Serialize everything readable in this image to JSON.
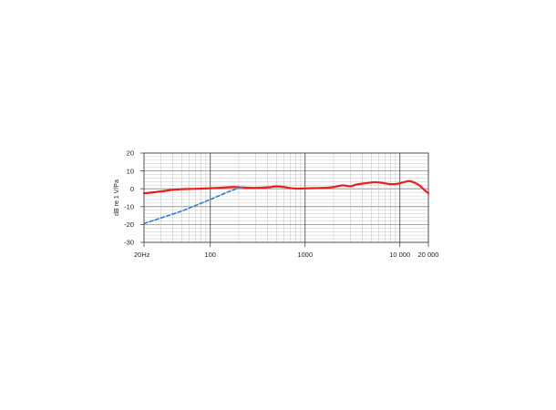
{
  "chart_data": {
    "type": "line",
    "title": "",
    "xlabel": "",
    "ylabel": "dB re 1 V/Pa",
    "x_scale": "log",
    "xlim": [
      20,
      20000
    ],
    "ylim": [
      -30,
      20
    ],
    "grid": true,
    "x_ticks": [
      {
        "value": 20,
        "label": "20Hz"
      },
      {
        "value": 100,
        "label": "100"
      },
      {
        "value": 1000,
        "label": "1000"
      },
      {
        "value": 10000,
        "label": "10 000"
      },
      {
        "value": 20000,
        "label": "20 000"
      }
    ],
    "y_ticks": [
      {
        "value": 20,
        "label": "20"
      },
      {
        "value": 10,
        "label": "10"
      },
      {
        "value": 0,
        "label": "0"
      },
      {
        "value": -10,
        "label": "-10"
      },
      {
        "value": -20,
        "label": "-20"
      },
      {
        "value": -30,
        "label": "-30"
      }
    ],
    "series": [
      {
        "color": "#e8201e",
        "style": "solid",
        "points": [
          [
            20,
            -2.5
          ],
          [
            25,
            -2.0
          ],
          [
            30,
            -1.5
          ],
          [
            40,
            -0.6
          ],
          [
            50,
            -0.2
          ],
          [
            70,
            0.0
          ],
          [
            100,
            0.3
          ],
          [
            130,
            0.6
          ],
          [
            170,
            1.0
          ],
          [
            200,
            0.9
          ],
          [
            250,
            0.6
          ],
          [
            300,
            0.5
          ],
          [
            400,
            0.8
          ],
          [
            500,
            1.3
          ],
          [
            600,
            1.0
          ],
          [
            700,
            0.4
          ],
          [
            800,
            0.1
          ],
          [
            1000,
            0.2
          ],
          [
            1300,
            0.4
          ],
          [
            1700,
            0.6
          ],
          [
            2000,
            1.0
          ],
          [
            2500,
            1.9
          ],
          [
            3000,
            1.4
          ],
          [
            3500,
            2.4
          ],
          [
            4500,
            3.2
          ],
          [
            5500,
            3.7
          ],
          [
            6500,
            3.3
          ],
          [
            8000,
            2.6
          ],
          [
            9500,
            2.8
          ],
          [
            11000,
            3.7
          ],
          [
            12500,
            4.3
          ],
          [
            14000,
            3.6
          ],
          [
            16000,
            2.0
          ],
          [
            18000,
            -0.5
          ],
          [
            20000,
            -2.5
          ]
        ]
      },
      {
        "color": "#2f7fc8",
        "style": "dashed",
        "points": [
          [
            20,
            -19.5
          ],
          [
            50,
            -12.5
          ],
          [
            100,
            -6.0
          ],
          [
            150,
            -2.0
          ],
          [
            200,
            0.5
          ],
          [
            220,
            1.0
          ]
        ]
      }
    ]
  }
}
